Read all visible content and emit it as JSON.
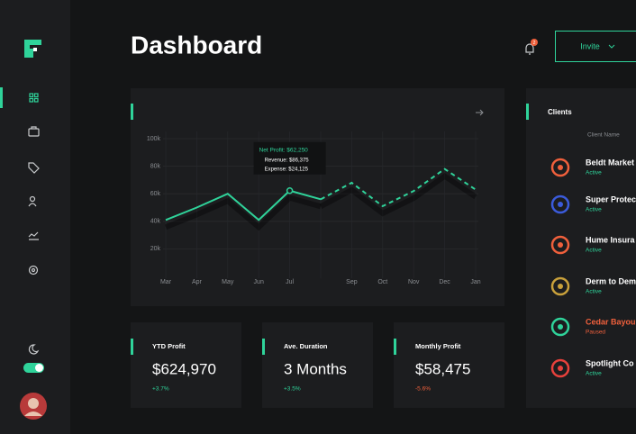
{
  "header": {
    "title": "Dashboard",
    "notification_count": "2",
    "invite_button": "Invite"
  },
  "chart_data": {
    "type": "line",
    "categories": [
      "Mar",
      "Apr",
      "May",
      "Jun",
      "Jul",
      null,
      "Sep",
      "Oct",
      "Nov",
      "Dec",
      "Jan"
    ],
    "series": [
      {
        "color": "#2fd39a",
        "dashed": false,
        "values": [
          41,
          50,
          60,
          41,
          62.25,
          56,
          null,
          null,
          null,
          null,
          null
        ]
      },
      {
        "color": "#2fd39a",
        "dashed": true,
        "values": [
          null,
          null,
          null,
          null,
          null,
          56,
          68,
          51,
          62,
          78,
          63
        ]
      }
    ],
    "ylim": [
      0,
      100
    ],
    "yticks": [
      {
        "value": 20,
        "label": "20k"
      },
      {
        "value": 40,
        "label": "40k"
      },
      {
        "value": 60,
        "label": "60k"
      },
      {
        "value": 80,
        "label": "80k"
      },
      {
        "value": 100,
        "label": "100k"
      }
    ],
    "grid": true,
    "tooltip": {
      "title": "Net Profit: $62,250",
      "revenue": "Revenue: $86,375",
      "expense": "Expense: $24,125"
    }
  },
  "stats": [
    {
      "label": "YTD Profit",
      "value": "$624,970",
      "change": "+3.7%",
      "change_color": "#2fd39a"
    },
    {
      "label": "Ave. Duration",
      "value": "3 Months",
      "change": "+3.5%",
      "change_color": "#2fd39a"
    },
    {
      "label": "Monthly Profit",
      "value": "$58,475",
      "change": "-5.6%",
      "change_color": "#f0603c"
    }
  ],
  "clients": {
    "title": "Clients",
    "column": "Client Name",
    "rows": [
      {
        "name": "Beldt Market",
        "status": "Active",
        "color": "#2fd39a",
        "icon_color": "#f0603c"
      },
      {
        "name": "Super Protec",
        "status": "Active",
        "color": "#2fd39a",
        "icon_color": "#3b5bdb"
      },
      {
        "name": "Hume Insura",
        "status": "Active",
        "color": "#2fd39a",
        "icon_color": "#f0603c"
      },
      {
        "name": "Derm to Dem",
        "status": "Active",
        "color": "#2fd39a",
        "icon_color": "#c9a13b"
      },
      {
        "name": "Cedar Bayou",
        "status": "Paused",
        "color": "#f0603c",
        "icon_color": "#2fd39a"
      },
      {
        "name": "Spotlight Co",
        "status": "Active",
        "color": "#2fd39a",
        "icon_color": "#e8413c"
      }
    ]
  }
}
